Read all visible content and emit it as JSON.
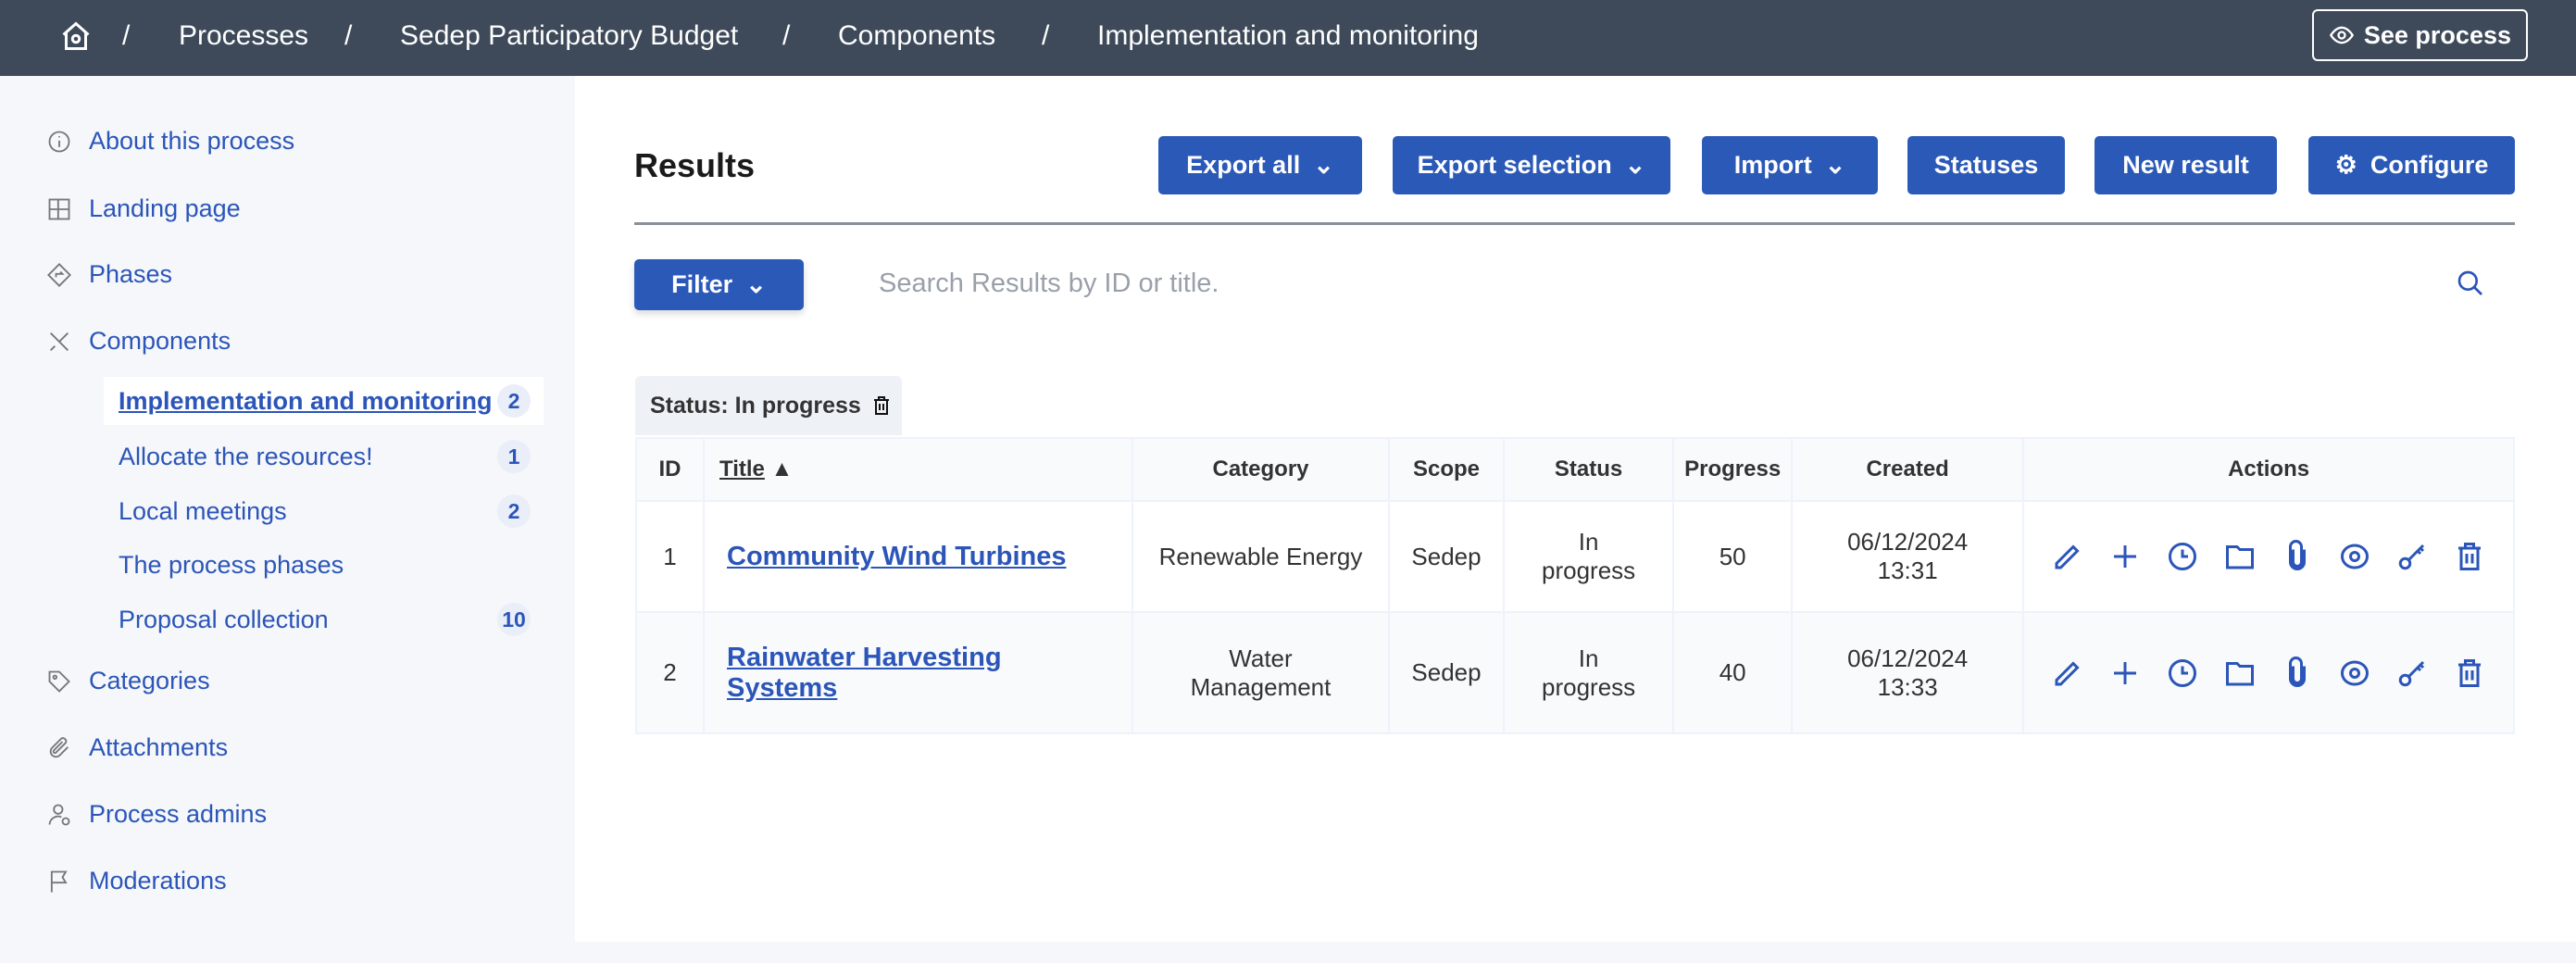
{
  "breadcrumb": {
    "items": [
      "Processes",
      "Sedep Participatory Budget",
      "Components",
      "Implementation and monitoring"
    ],
    "see_process": "See process"
  },
  "sidebar": {
    "items": [
      {
        "label": "About this process",
        "icon": "info-icon"
      },
      {
        "label": "Landing page",
        "icon": "layout-icon"
      },
      {
        "label": "Phases",
        "icon": "direction-icon"
      },
      {
        "label": "Components",
        "icon": "tools-icon"
      }
    ],
    "components": [
      {
        "label": "Implementation and monitoring",
        "count": "2",
        "active": true
      },
      {
        "label": "Allocate the resources!",
        "count": "1"
      },
      {
        "label": "Local meetings",
        "count": "2"
      },
      {
        "label": "The process phases"
      },
      {
        "label": "Proposal collection",
        "count": "10"
      }
    ],
    "items2": [
      {
        "label": "Categories",
        "icon": "tag-icon"
      },
      {
        "label": "Attachments",
        "icon": "paperclip-icon"
      },
      {
        "label": "Process admins",
        "icon": "user-settings-icon"
      },
      {
        "label": "Moderations",
        "icon": "flag-icon"
      }
    ]
  },
  "main": {
    "title": "Results",
    "buttons": {
      "export_all": "Export all",
      "export_selection": "Export selection",
      "import": "Import",
      "statuses": "Statuses",
      "new_result": "New result",
      "configure": "Configure"
    },
    "filter": "Filter",
    "search_placeholder": "Search Results by ID or title.",
    "active_filter": "Status: In progress",
    "table": {
      "headers": [
        "ID",
        "Title",
        "Category",
        "Scope",
        "Status",
        "Progress",
        "Created",
        "Actions"
      ],
      "rows": [
        {
          "id": "1",
          "title": "Community Wind Turbines",
          "category": "Renewable Energy",
          "scope": "Sedep",
          "status": "In progress",
          "progress": "50",
          "created": "06/12/2024 13:31"
        },
        {
          "id": "2",
          "title": "Rainwater Harvesting Systems",
          "category": "Water Management",
          "scope": "Sedep",
          "status": "In progress",
          "progress": "40",
          "created": "06/12/2024 13:33"
        }
      ]
    }
  },
  "colors": {
    "header": "#3e4a5a",
    "primary": "#2b59b8",
    "link": "#2b55b8"
  }
}
